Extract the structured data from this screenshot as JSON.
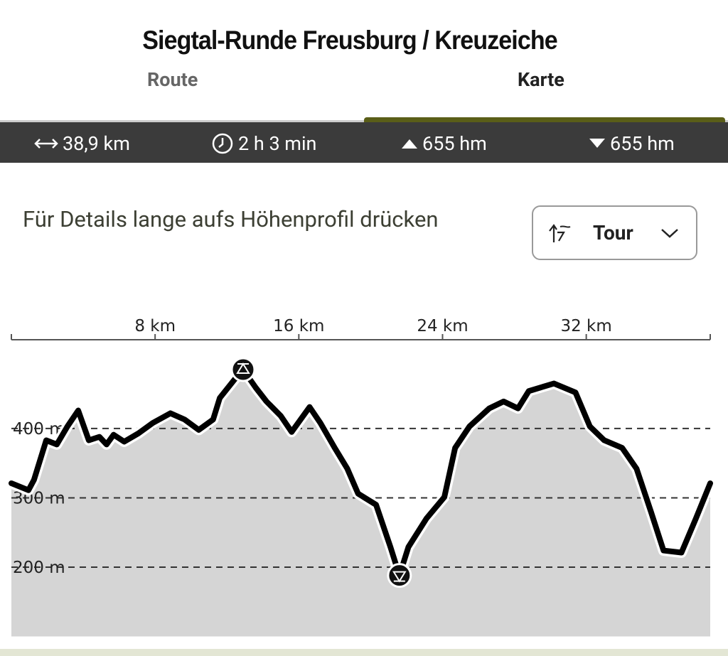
{
  "header": {
    "title": "Siegtal-Runde Freusburg / Kreuzeiche"
  },
  "tabs": [
    "Route",
    "Karte"
  ],
  "stats": {
    "distance": "38,9 km",
    "duration": "2 h 3 min",
    "ascent": "655 hm",
    "descent": "655 hm"
  },
  "hint": "Für Details lange aufs Höhenprofil drücken",
  "dropdown": "Tour",
  "chart_data": {
    "type": "area",
    "x": [
      0,
      0.95,
      1.26,
      1.94,
      2.53,
      3.12,
      3.72,
      4.31,
      4.9,
      5.3,
      5.69,
      6.28,
      7.07,
      7.87,
      8.85,
      9.64,
      10.43,
      11.23,
      11.6,
      12.4,
      12.9,
      13.6,
      14.2,
      15.0,
      15.6,
      16.6,
      17.2,
      18.0,
      18.7,
      19.3,
      20.3,
      21.1,
      21.6,
      22.1,
      23.1,
      24.1,
      24.7,
      25.5,
      26.6,
      27.4,
      28.2,
      28.8,
      30.2,
      31.4,
      32.2,
      33.0,
      34.0,
      34.8,
      35.6,
      36.3,
      37.3,
      38.1,
      38.9
    ],
    "values": [
      321,
      311,
      326,
      383,
      377,
      403,
      426,
      383,
      388,
      377,
      391,
      381,
      393,
      408,
      422,
      413,
      398,
      413,
      444,
      470,
      485,
      459,
      439,
      418,
      395,
      431,
      408,
      372,
      342,
      306,
      290,
      229,
      188,
      229,
      270,
      301,
      372,
      403,
      429,
      439,
      429,
      454,
      465,
      452,
      403,
      383,
      372,
      342,
      280,
      224,
      221,
      270,
      321
    ],
    "xlim": [
      0,
      38.9
    ],
    "xticks": [
      {
        "value": 8,
        "label": "8 km"
      },
      {
        "value": 16,
        "label": "16 km"
      },
      {
        "value": 24,
        "label": "24 km"
      },
      {
        "value": 32,
        "label": "32 km"
      }
    ],
    "ylim": [
      100,
      525
    ],
    "yticks": [
      {
        "value": 200,
        "label": "200 m"
      },
      {
        "value": 300,
        "label": "300 m"
      },
      {
        "value": 400,
        "label": "400 m"
      }
    ],
    "grid": true
  }
}
